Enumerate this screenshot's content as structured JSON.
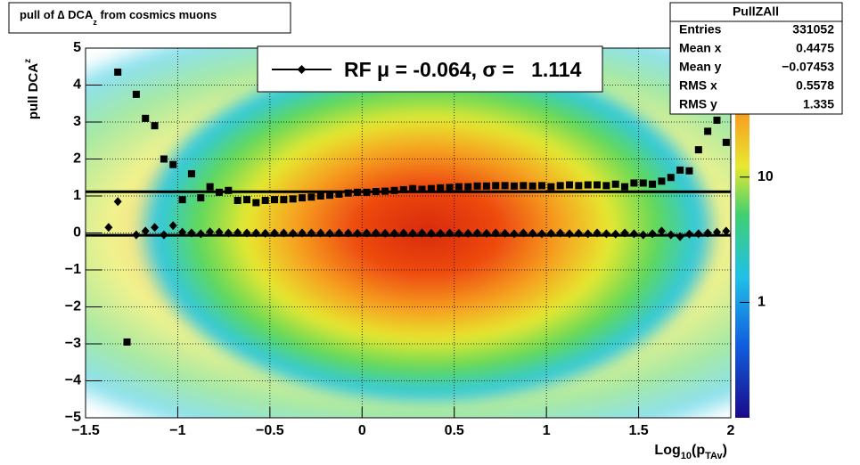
{
  "chart_data": {
    "type": "scatter",
    "title": "pull of ∆ DCA",
    "title_sub": "z",
    "title_rest": " from cosmics muons",
    "y_label": "pull DCA",
    "y_label_sub": "z",
    "x_label": "Log",
    "x_label_sub": "10",
    "x_label_mid": "(p",
    "x_label_sub2": "TAv",
    "x_label_end": ")",
    "xlim": [
      -1.5,
      2
    ],
    "xticks": [
      {
        "value": -1.5,
        "label": "−1.5"
      },
      {
        "value": -1,
        "label": "−1"
      },
      {
        "value": -0.5,
        "label": "−0.5"
      },
      0,
      0.5,
      1,
      1.5,
      2
    ],
    "ylim": [
      -5,
      5
    ],
    "yticks": [
      {
        "value": -5,
        "label": "−5"
      },
      {
        "value": -4,
        "label": "−4"
      },
      {
        "value": -3,
        "label": "−3"
      },
      {
        "value": -2,
        "label": "−2"
      },
      {
        "value": -1,
        "label": "−1"
      },
      0,
      1,
      2,
      3,
      4,
      5
    ],
    "grid": true,
    "zlim": [
      0.12,
      107
    ],
    "zticks": [
      1,
      10
    ],
    "zlog": true,
    "legend": {
      "prefix": "RF μ = ",
      "mean": -0.064,
      "mid": ", σ =   ",
      "sigma": 1.114
    },
    "stats": {
      "name": "PullZAll",
      "rows": [
        {
          "label": "Entries",
          "value": 331052
        },
        {
          "label": "Mean x",
          "value": 0.4475
        },
        {
          "label": "Mean y",
          "value": "−0.07453"
        },
        {
          "label": "RMS x",
          "value": 0.5578
        },
        {
          "label": "RMS y",
          "value": 1.335
        }
      ]
    },
    "series": [
      {
        "marker": "square",
        "color": "#000000",
        "x": [
          -1.325,
          -1.275,
          -1.225,
          -1.175,
          -1.125,
          -1.075,
          -1.025,
          -0.975,
          -0.925,
          -0.875,
          -0.825,
          -0.775,
          -0.725,
          -0.675,
          -0.625,
          -0.575,
          -0.525,
          -0.475,
          -0.425,
          -0.375,
          -0.325,
          -0.275,
          -0.225,
          -0.175,
          -0.125,
          -0.075,
          -0.025,
          0.025,
          0.075,
          0.125,
          0.175,
          0.225,
          0.275,
          0.325,
          0.375,
          0.425,
          0.475,
          0.525,
          0.575,
          0.625,
          0.675,
          0.725,
          0.775,
          0.825,
          0.875,
          0.925,
          0.975,
          1.025,
          1.075,
          1.125,
          1.175,
          1.225,
          1.275,
          1.325,
          1.375,
          1.425,
          1.475,
          1.525,
          1.575,
          1.625,
          1.675,
          1.725,
          1.775,
          1.825,
          1.875,
          1.925,
          1.975
        ],
        "values": [
          4.35,
          -2.95,
          3.75,
          3.1,
          2.9,
          2.0,
          1.85,
          0.9,
          1.6,
          0.95,
          1.25,
          1.1,
          1.15,
          0.88,
          0.9,
          0.82,
          0.88,
          0.9,
          0.9,
          0.92,
          0.95,
          0.97,
          1.0,
          1.02,
          1.05,
          1.08,
          1.1,
          1.1,
          1.12,
          1.13,
          1.15,
          1.17,
          1.2,
          1.18,
          1.2,
          1.22,
          1.23,
          1.25,
          1.25,
          1.27,
          1.27,
          1.28,
          1.28,
          1.27,
          1.28,
          1.27,
          1.28,
          1.25,
          1.28,
          1.3,
          1.28,
          1.3,
          1.3,
          1.28,
          1.32,
          1.25,
          1.35,
          1.35,
          1.32,
          1.4,
          1.5,
          1.7,
          1.68,
          2.25,
          2.75,
          3.05,
          2.45
        ]
      },
      {
        "marker": "diamond",
        "color": "#000000",
        "x": [
          -1.375,
          -1.325,
          -1.225,
          -1.175,
          -1.125,
          -1.075,
          -1.025,
          -0.975,
          -0.925,
          -0.875,
          -0.825,
          -0.775,
          -0.725,
          -0.675,
          -0.625,
          -0.575,
          -0.525,
          -0.475,
          -0.425,
          -0.375,
          -0.325,
          -0.275,
          -0.225,
          -0.175,
          -0.125,
          -0.075,
          -0.025,
          0.025,
          0.075,
          0.125,
          0.175,
          0.225,
          0.275,
          0.325,
          0.375,
          0.425,
          0.475,
          0.525,
          0.575,
          0.625,
          0.675,
          0.725,
          0.775,
          0.825,
          0.875,
          0.925,
          0.975,
          1.025,
          1.075,
          1.125,
          1.175,
          1.225,
          1.275,
          1.325,
          1.375,
          1.425,
          1.475,
          1.525,
          1.575,
          1.625,
          1.675,
          1.725,
          1.775,
          1.825,
          1.875,
          1.925,
          1.975
        ],
        "values": [
          0.15,
          0.85,
          -0.05,
          0.05,
          0.15,
          -0.05,
          0.2,
          0.02,
          0.0,
          -0.02,
          0.03,
          0.02,
          0.0,
          0.01,
          0.0,
          0.0,
          -0.01,
          0.0,
          0.0,
          -0.01,
          0.0,
          0.0,
          0.0,
          -0.01,
          0.0,
          0.0,
          -0.01,
          0.0,
          0.0,
          -0.01,
          -0.01,
          0.0,
          -0.01,
          0.0,
          -0.01,
          -0.01,
          0.0,
          -0.01,
          -0.01,
          0.0,
          -0.01,
          0.0,
          -0.01,
          -0.02,
          0.0,
          -0.01,
          -0.02,
          -0.01,
          0.0,
          -0.02,
          -0.01,
          -0.02,
          0.0,
          -0.02,
          -0.03,
          0.0,
          -0.02,
          -0.05,
          -0.02,
          0.05,
          -0.05,
          -0.1,
          -0.03,
          -0.02,
          0.0,
          0.02,
          0.05
        ]
      }
    ]
  }
}
